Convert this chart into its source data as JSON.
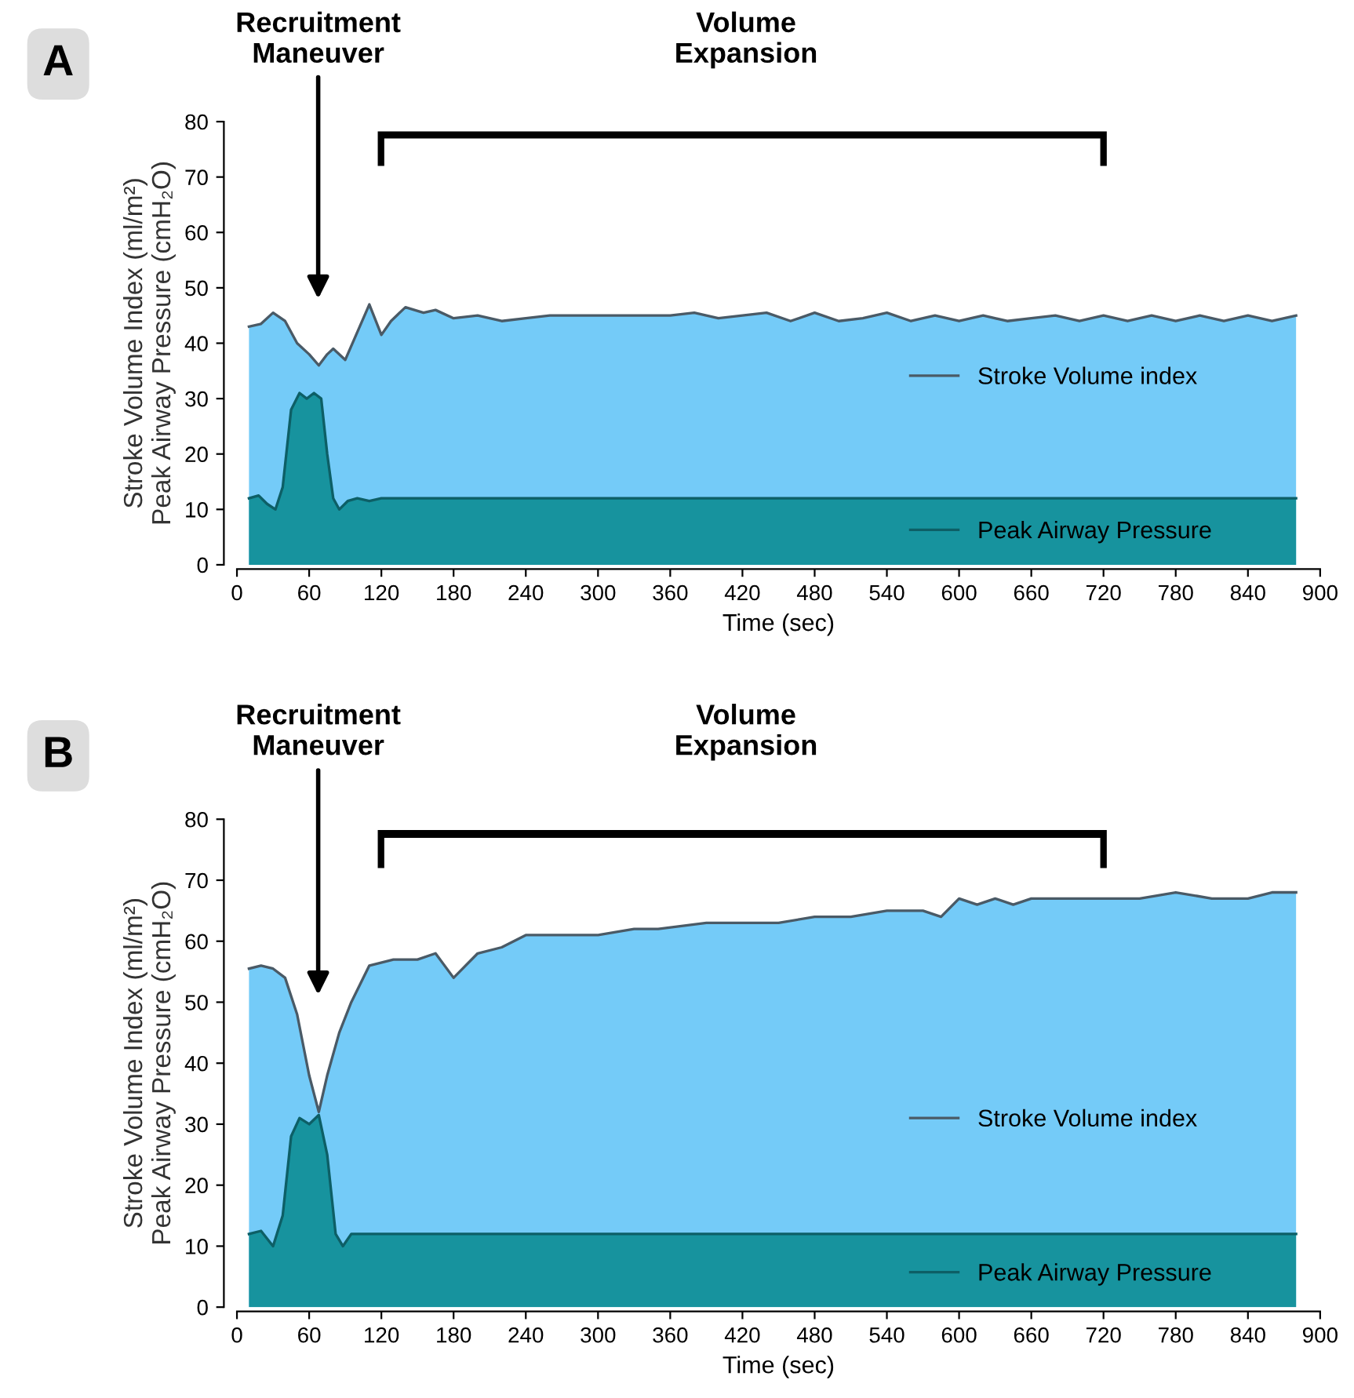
{
  "chart_data": [
    {
      "type": "area",
      "title": "A",
      "xlabel": "Time (sec)",
      "ylabel": "Stroke Volume Index (ml/m²)\nPeak Airway Pressure (cmH₂O)",
      "xlim": [
        0,
        900
      ],
      "xticks": [
        0,
        60,
        120,
        180,
        240,
        300,
        360,
        420,
        480,
        540,
        600,
        660,
        720,
        780,
        840,
        900
      ],
      "ylim": [
        0,
        80
      ],
      "yticks": [
        0,
        10,
        20,
        30,
        40,
        50,
        60,
        70,
        80
      ],
      "grid": false,
      "legend": "lower right",
      "annotations": [
        "Recruitment\nManeuver",
        "Volume\nExpansion"
      ],
      "series": [
        {
          "name": "Stroke Volume index",
          "color": "#74cbf8",
          "x": [
            10,
            20,
            30,
            40,
            50,
            60,
            68,
            75,
            80,
            90,
            100,
            110,
            120,
            128,
            140,
            155,
            165,
            180,
            200,
            220,
            240,
            260,
            300,
            360,
            380,
            400,
            440,
            460,
            480,
            500,
            520,
            540,
            560,
            580,
            600,
            620,
            640,
            660,
            680,
            700,
            720,
            740,
            760,
            780,
            800,
            820,
            840,
            860,
            880
          ],
          "values": [
            43,
            43.5,
            45.5,
            44,
            40,
            38,
            36,
            38,
            39,
            37,
            42,
            47,
            41.5,
            44,
            46.5,
            45.5,
            46,
            44.5,
            45,
            44,
            44.5,
            45,
            45,
            45,
            45.5,
            44.5,
            45.5,
            44,
            45.5,
            44,
            44.5,
            45.5,
            44,
            45,
            44,
            45,
            44,
            44.5,
            45,
            44,
            45,
            44,
            45,
            44,
            45,
            44,
            45,
            44,
            45
          ]
        },
        {
          "name": "Peak Airway Pressure",
          "color": "#17939e",
          "x": [
            10,
            18,
            25,
            32,
            38,
            45,
            52,
            58,
            64,
            70,
            75,
            80,
            85,
            92,
            100,
            110,
            120,
            880
          ],
          "values": [
            12,
            12.5,
            11,
            10,
            14,
            28,
            31,
            30,
            31,
            30,
            20,
            12,
            10,
            11.5,
            12,
            11.5,
            12,
            12
          ]
        }
      ]
    },
    {
      "type": "area",
      "title": "B",
      "xlabel": "Time (sec)",
      "ylabel": "Stroke Volume Index (ml/m²)\nPeak Airway Pressure (cmH₂O)",
      "xlim": [
        0,
        900
      ],
      "xticks": [
        0,
        60,
        120,
        180,
        240,
        300,
        360,
        420,
        480,
        540,
        600,
        660,
        720,
        780,
        840,
        900
      ],
      "ylim": [
        0,
        80
      ],
      "yticks": [
        0,
        10,
        20,
        30,
        40,
        50,
        60,
        70,
        80
      ],
      "grid": false,
      "legend": "lower right",
      "annotations": [
        "Recruitment\nManeuver",
        "Volume\nExpansion"
      ],
      "series": [
        {
          "name": "Stroke Volume index",
          "color": "#74cbf8",
          "x": [
            10,
            20,
            30,
            40,
            50,
            60,
            68,
            75,
            85,
            95,
            110,
            130,
            150,
            165,
            180,
            200,
            220,
            240,
            260,
            300,
            330,
            350,
            390,
            420,
            450,
            480,
            510,
            540,
            570,
            585,
            600,
            615,
            630,
            645,
            660,
            720,
            750,
            780,
            810,
            840,
            860,
            880
          ],
          "values": [
            55.5,
            56,
            55.5,
            54,
            48,
            38,
            32,
            38,
            45,
            50,
            56,
            57,
            57,
            58,
            54,
            58,
            59,
            61,
            61,
            61,
            62,
            62,
            63,
            63,
            63,
            64,
            64,
            65,
            65,
            64,
            67,
            66,
            67,
            66,
            67,
            67,
            67,
            68,
            67,
            67,
            68,
            68
          ]
        },
        {
          "name": "Peak Airway Pressure",
          "color": "#17939e",
          "x": [
            10,
            20,
            30,
            38,
            45,
            52,
            60,
            68,
            75,
            82,
            88,
            95,
            105,
            880
          ],
          "values": [
            12,
            12.5,
            10,
            15,
            28,
            31,
            30,
            31.5,
            25,
            12,
            10,
            12,
            12,
            12
          ]
        }
      ]
    }
  ]
}
